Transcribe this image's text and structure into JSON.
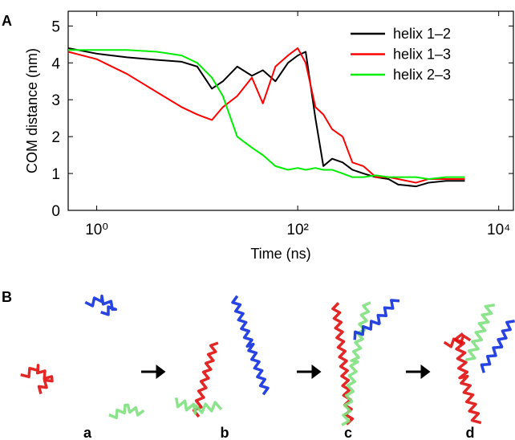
{
  "chart_data": {
    "type": "line",
    "title": "A",
    "xlabel": "Time (ns)",
    "ylabel": "COM distance (nm)",
    "x": [
      0.52,
      1,
      2,
      4,
      7,
      10,
      14,
      18,
      25,
      35,
      45,
      60,
      80,
      100,
      120,
      150,
      180,
      220,
      280,
      350,
      450,
      600,
      800,
      1000,
      1500,
      2000,
      3000,
      4600
    ],
    "series": [
      {
        "name": "helix 1–2",
        "color": "#000000",
        "values": [
          4.4,
          4.25,
          4.15,
          4.08,
          4.03,
          3.9,
          3.3,
          3.5,
          3.9,
          3.65,
          3.8,
          3.5,
          4.0,
          4.2,
          4.3,
          2.5,
          1.2,
          1.4,
          1.3,
          1.1,
          1.0,
          0.9,
          0.85,
          0.7,
          0.65,
          0.75,
          0.8,
          0.8
        ]
      },
      {
        "name": "helix 1–3",
        "color": "#ff0000",
        "values": [
          4.3,
          4.1,
          3.7,
          3.2,
          2.8,
          2.6,
          2.45,
          2.8,
          3.1,
          3.6,
          2.9,
          3.9,
          4.2,
          4.4,
          4.0,
          2.8,
          2.6,
          2.2,
          2.0,
          1.3,
          1.2,
          0.9,
          0.9,
          0.85,
          0.75,
          0.85,
          0.85,
          0.85
        ]
      },
      {
        "name": "helix 2–3",
        "color": "#00ee00",
        "values": [
          4.35,
          4.35,
          4.35,
          4.3,
          4.2,
          4.0,
          3.6,
          3.1,
          2.0,
          1.7,
          1.5,
          1.2,
          1.1,
          1.15,
          1.1,
          1.15,
          1.1,
          1.1,
          1.0,
          0.9,
          0.9,
          0.95,
          0.9,
          0.9,
          0.9,
          0.85,
          0.9,
          0.9
        ]
      }
    ],
    "xscale": "log",
    "xlim": [
      0.52,
      14000
    ],
    "ylim": [
      0,
      5.4
    ],
    "xticks": [
      {
        "value": 1,
        "label": "10⁰"
      },
      {
        "value": 100,
        "label": "10²"
      },
      {
        "value": 10000,
        "label": "10⁴"
      }
    ],
    "yticks": [
      0,
      1,
      2,
      3,
      4,
      5
    ],
    "grid": false,
    "legend": "upper right"
  },
  "figure": {
    "panel_b": "B",
    "subpanels": [
      "a",
      "b",
      "c",
      "d"
    ]
  }
}
